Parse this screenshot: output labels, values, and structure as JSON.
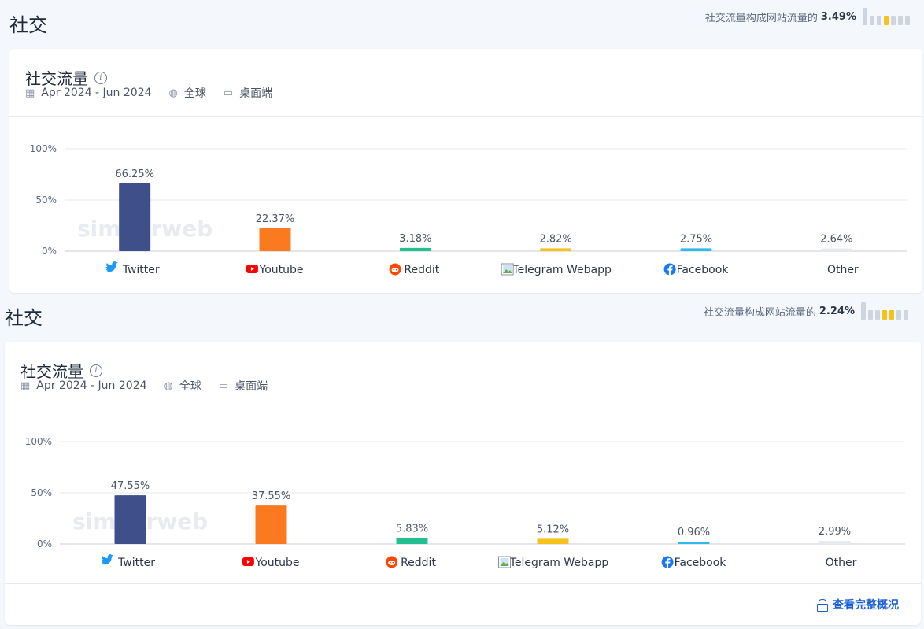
{
  "panels": [
    {
      "section_title": "社交",
      "share_text": "社交流量构成网站流量的",
      "share_value": "3.49%",
      "card_title": "社交流量",
      "date_range": "Apr 2024 - Jun 2024",
      "region": "全球",
      "device": "桌面端",
      "watermark": "similarweb",
      "footer_link": ""
    },
    {
      "section_title": "社交",
      "share_text": "社交流量构成网站流量的",
      "share_value": "2.24%",
      "card_title": "社交流量",
      "date_range": "Apr 2024 - Jun 2024",
      "region": "全球",
      "device": "桌面端",
      "watermark": "similarweb",
      "footer_link": "查看完整概况"
    }
  ],
  "colors": {
    "Twitter": "#3f4f8a",
    "Youtube": "#fb7a1f",
    "Reddit": "#22c08e",
    "Telegram Webapp": "#f6c11c",
    "Facebook": "#2cbbea",
    "Other": "#e6e9ee"
  },
  "chart_data": [
    {
      "type": "bar",
      "categories": [
        "Twitter",
        "Youtube",
        "Reddit",
        "Telegram Webapp",
        "Facebook",
        "Other"
      ],
      "values": [
        66.25,
        22.37,
        3.18,
        2.82,
        2.75,
        2.64
      ],
      "value_labels": [
        "66.25%",
        "22.37%",
        "3.18%",
        "2.82%",
        "2.75%",
        "2.64%"
      ],
      "yticks": [
        "0%",
        "50%",
        "100%"
      ],
      "ylim": [
        0,
        100
      ],
      "grid": true
    },
    {
      "type": "bar",
      "categories": [
        "Twitter",
        "Youtube",
        "Reddit",
        "Telegram Webapp",
        "Facebook",
        "Other"
      ],
      "values": [
        47.55,
        37.55,
        5.83,
        5.12,
        0.96,
        2.99
      ],
      "value_labels": [
        "47.55%",
        "37.55%",
        "5.83%",
        "5.12%",
        "0.96%",
        "2.99%"
      ],
      "yticks": [
        "0%",
        "50%",
        "100%"
      ],
      "ylim": [
        0,
        100
      ],
      "grid": true
    }
  ]
}
